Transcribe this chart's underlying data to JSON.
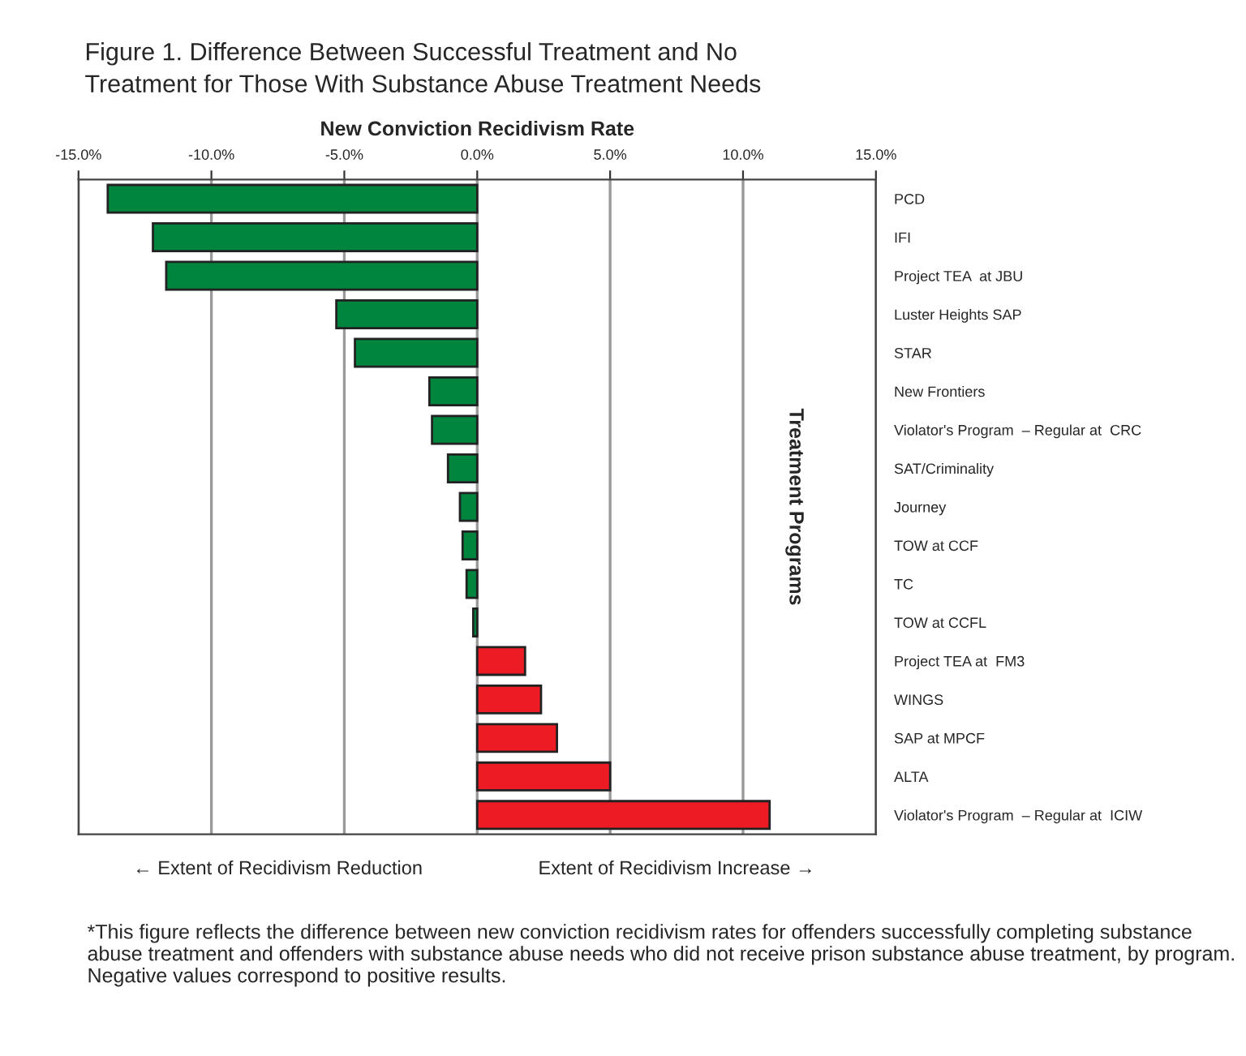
{
  "chart_data": {
    "type": "bar",
    "orientation": "horizontal",
    "title": "Figure 1. Difference Between Successful Treatment and No\nTreatment for Those With Substance Abuse Treatment Needs",
    "xlabel": "New Conviction Recidivism Rate",
    "ylabel": "Treatment Programs",
    "categories": [
      "PCD",
      "IFI",
      "Project TEA  at JBU",
      "Luster Heights SAP",
      "STAR",
      "New Frontiers",
      "Violator's Program  – Regular at  CRC",
      "SAT/Criminality",
      "Journey",
      "TOW at CCF",
      "TC",
      "TOW at CCFL",
      "Project TEA at  FM3",
      "WINGS",
      "SAP at MPCF",
      "ALTA",
      "Violator's Program  – Regular at  ICIW"
    ],
    "values": [
      -13.9,
      -12.2,
      -11.7,
      -5.3,
      -4.6,
      -1.8,
      -1.7,
      -1.1,
      -0.65,
      -0.55,
      -0.4,
      -0.15,
      1.8,
      2.4,
      3.0,
      5.0,
      11.0
    ],
    "colors": [
      "#00853f",
      "#00853f",
      "#00853f",
      "#00853f",
      "#00853f",
      "#00853f",
      "#00853f",
      "#00853f",
      "#00853f",
      "#00853f",
      "#00853f",
      "#00853f",
      "#ed1c24",
      "#ed1c24",
      "#ed1c24",
      "#ed1c24",
      "#ed1c24"
    ],
    "xlim": [
      -15,
      15
    ],
    "xticks": [
      {
        "value": -15,
        "label": "-15.0%"
      },
      {
        "value": -10,
        "label": "-10.0%"
      },
      {
        "value": -5,
        "label": "-5.0%"
      },
      {
        "value": 0,
        "label": "0.0%"
      },
      {
        "value": 5,
        "label": "5.0%"
      },
      {
        "value": 10,
        "label": "10.0%"
      },
      {
        "value": 15,
        "label": "15.0%"
      }
    ],
    "grid": "x",
    "annotations": [
      "← Extent of Recidivism Reduction",
      "Extent of Recidivism Increase →",
      "*This figure reflects the difference between new conviction recidivism rates for offenders successfully completing substance abuse treatment and offenders with substance abuse needs who did not receive prison substance abuse treatment, by program. Negative values correspond to positive results."
    ]
  }
}
